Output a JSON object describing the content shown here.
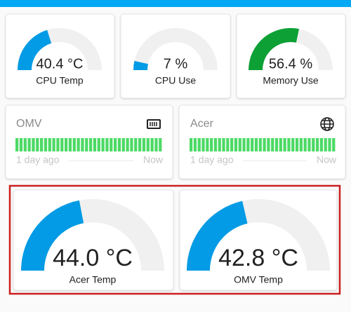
{
  "gauges": [
    {
      "name": "CPU Temp",
      "value": 40.4,
      "value_label": "40.4 °C",
      "min": 0,
      "max": 100,
      "color": "#039be5"
    },
    {
      "name": "CPU Use",
      "value": 7,
      "value_label": "7 %",
      "min": 0,
      "max": 100,
      "color": "#039be5"
    },
    {
      "name": "Memory Use",
      "value": 56.4,
      "value_label": "56.4 %",
      "min": 0,
      "max": 100,
      "color": "#0da035"
    },
    {
      "name": "Acer Temp",
      "value": 44.0,
      "value_label": "44.0 °C",
      "min": 0,
      "max": 100,
      "color": "#039be5"
    },
    {
      "name": "OMV Temp",
      "value": 42.8,
      "value_label": "42.8 °C",
      "min": 0,
      "max": 100,
      "color": "#039be5"
    }
  ],
  "status_cards": [
    {
      "name": "OMV",
      "start": "1 day ago",
      "end": "Now"
    },
    {
      "name": "Acer",
      "start": "1 day ago",
      "end": "Now"
    }
  ]
}
